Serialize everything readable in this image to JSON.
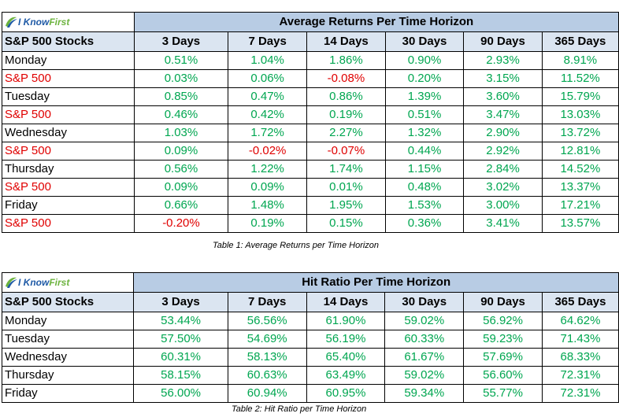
{
  "logo": {
    "text_know": "I Know",
    "text_first": "First"
  },
  "colors": {
    "title_bg": "#b8cce4",
    "header_bg": "#dbe5f1",
    "positive": "#00a650",
    "negative": "#e00000"
  },
  "table1": {
    "title": "Average Returns Per Time Horizon",
    "headers": [
      "S&P 500 Stocks",
      "3 Days",
      "7 Days",
      "14 Days",
      "30 Days",
      "90 Days",
      "365 Days"
    ],
    "rows": [
      {
        "label": "Monday",
        "sp": false,
        "values": [
          "0.51%",
          "1.04%",
          "1.86%",
          "0.90%",
          "2.93%",
          "8.91%"
        ]
      },
      {
        "label": "S&P 500",
        "sp": true,
        "values": [
          "0.03%",
          "0.06%",
          "-0.08%",
          "0.20%",
          "3.15%",
          "11.52%"
        ]
      },
      {
        "label": "Tuesday",
        "sp": false,
        "values": [
          "0.85%",
          "0.47%",
          "0.86%",
          "1.39%",
          "3.60%",
          "15.79%"
        ]
      },
      {
        "label": "S&P 500",
        "sp": true,
        "values": [
          "0.46%",
          "0.42%",
          "0.19%",
          "0.51%",
          "3.47%",
          "13.03%"
        ]
      },
      {
        "label": "Wednesday",
        "sp": false,
        "values": [
          "1.03%",
          "1.72%",
          "2.27%",
          "1.32%",
          "2.90%",
          "13.72%"
        ]
      },
      {
        "label": "S&P 500",
        "sp": true,
        "values": [
          "0.09%",
          "-0.02%",
          "-0.07%",
          "0.44%",
          "2.92%",
          "12.81%"
        ]
      },
      {
        "label": "Thursday",
        "sp": false,
        "values": [
          "0.56%",
          "1.22%",
          "1.74%",
          "1.15%",
          "2.84%",
          "14.52%"
        ]
      },
      {
        "label": "S&P 500",
        "sp": true,
        "values": [
          "0.09%",
          "0.09%",
          "0.01%",
          "0.48%",
          "3.02%",
          "13.37%"
        ]
      },
      {
        "label": "Friday",
        "sp": false,
        "values": [
          "0.66%",
          "1.48%",
          "1.95%",
          "1.53%",
          "3.00%",
          "17.21%"
        ]
      },
      {
        "label": "S&P 500",
        "sp": true,
        "values": [
          "-0.20%",
          "0.19%",
          "0.15%",
          "0.36%",
          "3.41%",
          "13.57%"
        ]
      }
    ],
    "caption": "Table 1: Average Returns per Time Horizon"
  },
  "table2": {
    "title": "Hit Ratio Per Time Horizon",
    "headers": [
      "S&P 500 Stocks",
      "3 Days",
      "7 Days",
      "14 Days",
      "30 Days",
      "90 Days",
      "365 Days"
    ],
    "rows": [
      {
        "label": "Monday",
        "sp": false,
        "values": [
          "53.44%",
          "56.56%",
          "61.90%",
          "59.02%",
          "56.92%",
          "64.62%"
        ]
      },
      {
        "label": "Tuesday",
        "sp": false,
        "values": [
          "57.50%",
          "54.69%",
          "56.19%",
          "60.33%",
          "59.23%",
          "71.43%"
        ]
      },
      {
        "label": "Wednesday",
        "sp": false,
        "values": [
          "60.31%",
          "58.13%",
          "65.40%",
          "61.67%",
          "57.69%",
          "68.33%"
        ]
      },
      {
        "label": "Thursday",
        "sp": false,
        "values": [
          "58.15%",
          "60.63%",
          "63.49%",
          "59.02%",
          "56.60%",
          "72.31%"
        ]
      },
      {
        "label": "Friday",
        "sp": false,
        "values": [
          "56.00%",
          "60.94%",
          "60.95%",
          "59.34%",
          "55.77%",
          "72.31%"
        ]
      }
    ],
    "caption": "Table 2: Hit Ratio per Time Horizon"
  }
}
